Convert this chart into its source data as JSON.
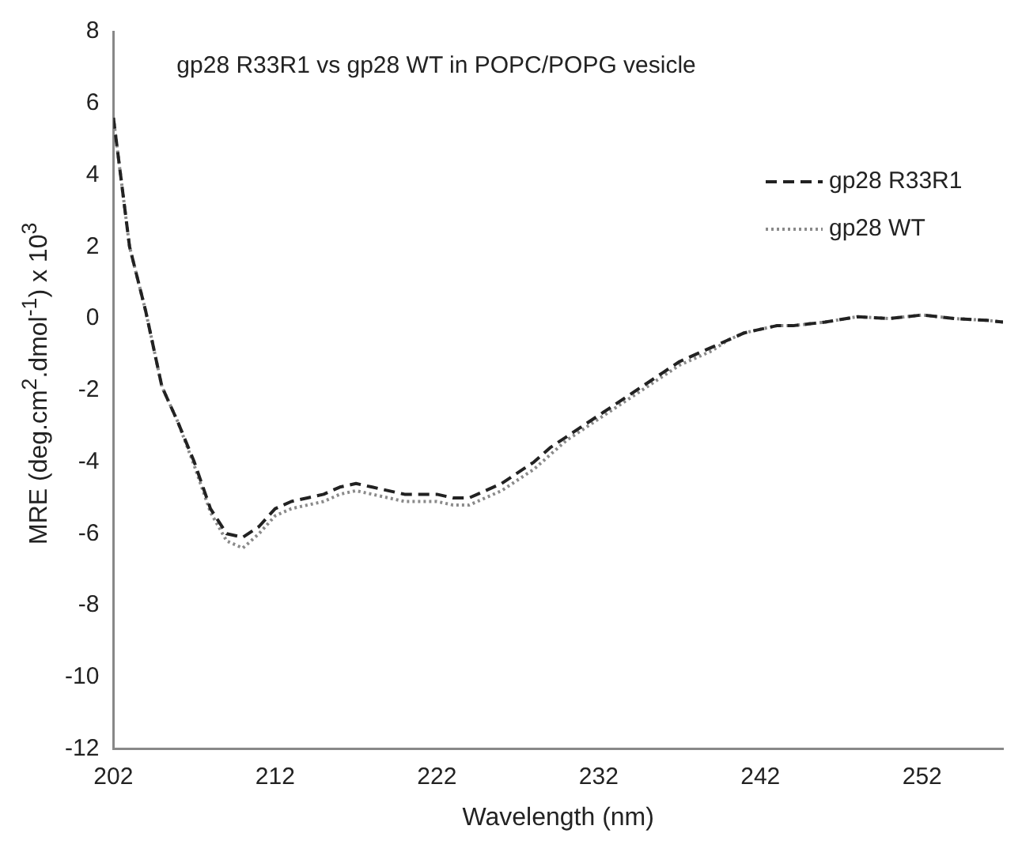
{
  "chart_data": {
    "type": "line",
    "title": "gp28 R33R1 vs gp28 WT in POPC/POPG vesicle",
    "xlabel": "Wavelength (nm)",
    "ylabel": "MRE (deg.cm$^{2}$.dmol$^{-1}$) x 10$^{3}$",
    "x": [
      202,
      203,
      204,
      205,
      206,
      207,
      208,
      209,
      210,
      211,
      212,
      213,
      214,
      215,
      216,
      217,
      218,
      219,
      220,
      221,
      222,
      223,
      224,
      225,
      226,
      227,
      228,
      229,
      230,
      231,
      232,
      233,
      234,
      235,
      236,
      237,
      238,
      239,
      240,
      241,
      242,
      243,
      244,
      245,
      246,
      248,
      250,
      252,
      254,
      256,
      257
    ],
    "series": [
      {
        "name": "gp28 R33R1",
        "color": "#222222",
        "line_style": "dashed",
        "values": [
          5.6,
          2.0,
          0.2,
          -1.9,
          -2.9,
          -4.0,
          -5.3,
          -6.0,
          -6.1,
          -5.8,
          -5.3,
          -5.1,
          -5.0,
          -4.9,
          -4.7,
          -4.6,
          -4.7,
          -4.8,
          -4.9,
          -4.9,
          -4.9,
          -5.0,
          -5.0,
          -4.8,
          -4.6,
          -4.3,
          -4.0,
          -3.6,
          -3.3,
          -3.0,
          -2.7,
          -2.4,
          -2.1,
          -1.8,
          -1.5,
          -1.2,
          -1.0,
          -0.8,
          -0.6,
          -0.4,
          -0.3,
          -0.2,
          -0.2,
          -0.15,
          -0.1,
          0.05,
          0.0,
          0.1,
          0.0,
          -0.05,
          -0.1
        ]
      },
      {
        "name": "gp28 WT",
        "color": "#8a8a8a",
        "line_style": "dotted",
        "values": [
          5.6,
          2.0,
          0.2,
          -1.9,
          -2.9,
          -4.1,
          -5.4,
          -6.2,
          -6.4,
          -6.0,
          -5.5,
          -5.3,
          -5.2,
          -5.1,
          -4.9,
          -4.8,
          -4.9,
          -5.0,
          -5.1,
          -5.1,
          -5.1,
          -5.2,
          -5.2,
          -5.0,
          -4.8,
          -4.5,
          -4.2,
          -3.8,
          -3.4,
          -3.1,
          -2.8,
          -2.5,
          -2.2,
          -1.9,
          -1.6,
          -1.3,
          -1.1,
          -0.9,
          -0.6,
          -0.4,
          -0.3,
          -0.2,
          -0.2,
          -0.15,
          -0.1,
          0.05,
          0.0,
          0.1,
          0.0,
          -0.05,
          -0.1
        ]
      }
    ],
    "xlim": [
      202,
      257
    ],
    "xticks": [
      202,
      212,
      222,
      232,
      242,
      252
    ],
    "ylim": [
      -12,
      8
    ],
    "yticks": [
      -12,
      -10,
      -8,
      -6,
      -4,
      -2,
      0,
      2,
      4,
      6,
      8
    ],
    "grid": false,
    "legend": "top right",
    "marker": "none"
  }
}
